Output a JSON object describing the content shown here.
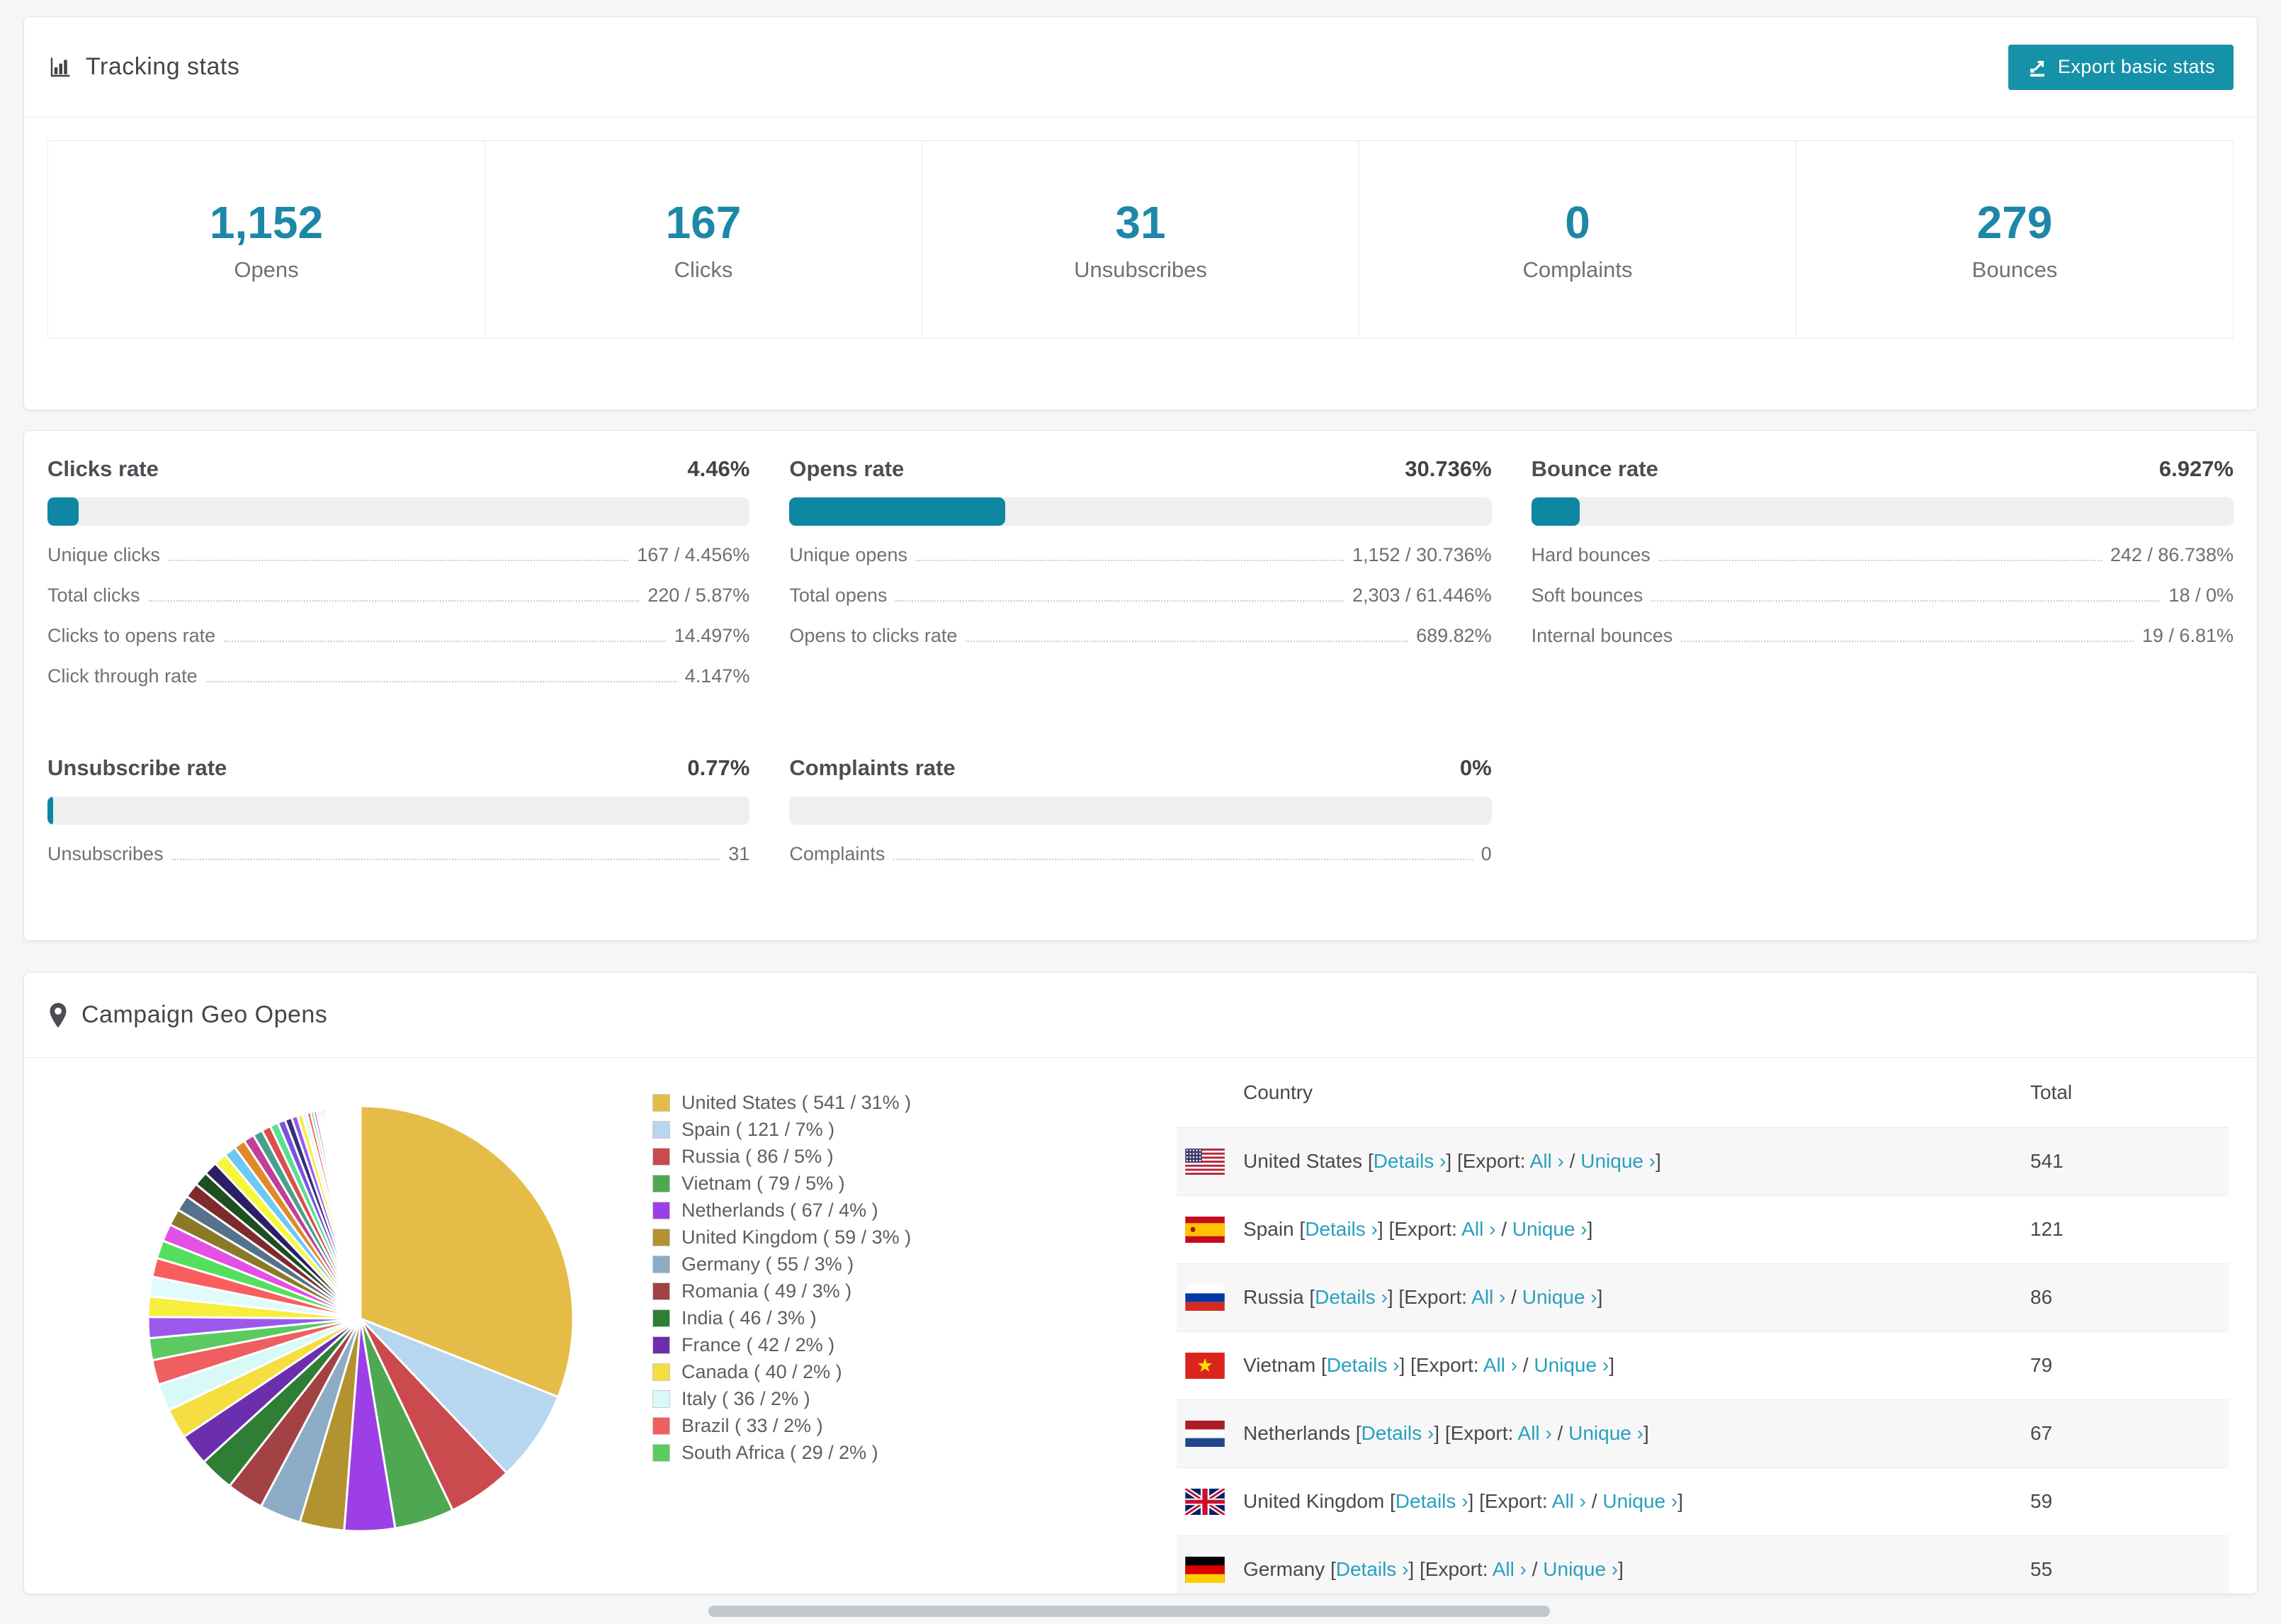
{
  "tracking_stats": {
    "title": "Tracking stats",
    "export_button": "Export basic stats",
    "stats": [
      {
        "value": "1,152",
        "label": "Opens"
      },
      {
        "value": "167",
        "label": "Clicks"
      },
      {
        "value": "31",
        "label": "Unsubscribes"
      },
      {
        "value": "0",
        "label": "Complaints"
      },
      {
        "value": "279",
        "label": "Bounces"
      }
    ]
  },
  "rates": {
    "sections": [
      {
        "title": "Clicks rate",
        "value": "4.46%",
        "percent": 4.46,
        "rows": [
          {
            "label": "Unique clicks",
            "value": "167 / 4.456%"
          },
          {
            "label": "Total clicks",
            "value": "220 / 5.87%"
          },
          {
            "label": "Clicks to opens rate",
            "value": "14.497%"
          },
          {
            "label": "Click through rate",
            "value": "4.147%"
          }
        ]
      },
      {
        "title": "Opens rate",
        "value": "30.736%",
        "percent": 30.736,
        "rows": [
          {
            "label": "Unique opens",
            "value": "1,152 / 30.736%"
          },
          {
            "label": "Total opens",
            "value": "2,303 / 61.446%"
          },
          {
            "label": "Opens to clicks rate",
            "value": "689.82%"
          }
        ]
      },
      {
        "title": "Bounce rate",
        "value": "6.927%",
        "percent": 6.927,
        "rows": [
          {
            "label": "Hard bounces",
            "value": "242 / 86.738%"
          },
          {
            "label": "Soft bounces",
            "value": "18 / 0%"
          },
          {
            "label": "Internal bounces",
            "value": "19 / 6.81%"
          }
        ]
      },
      {
        "title": "Unsubscribe rate",
        "value": "0.77%",
        "percent": 0.77,
        "rows": [
          {
            "label": "Unsubscribes",
            "value": "31"
          }
        ]
      },
      {
        "title": "Complaints rate",
        "value": "0%",
        "percent": 0,
        "rows": [
          {
            "label": "Complaints",
            "value": "0"
          }
        ]
      }
    ]
  },
  "geo": {
    "title": "Campaign Geo Opens",
    "table": {
      "col_country": "Country",
      "col_total": "Total",
      "details_label": "Details ›",
      "export_prefix": "[Export:",
      "all_label": "All ›",
      "unique_label": "Unique ›",
      "bracket_open": "[",
      "bracket_close": "]",
      "separator": "/",
      "rows": [
        {
          "country": "United States",
          "flag": "us",
          "total": "541"
        },
        {
          "country": "Spain",
          "flag": "es",
          "total": "121"
        },
        {
          "country": "Russia",
          "flag": "ru",
          "total": "86"
        },
        {
          "country": "Vietnam",
          "flag": "vn",
          "total": "79"
        },
        {
          "country": "Netherlands",
          "flag": "nl",
          "total": "67"
        },
        {
          "country": "United Kingdom",
          "flag": "gb",
          "total": "59"
        },
        {
          "country": "Germany",
          "flag": "de",
          "total": "55"
        }
      ]
    }
  },
  "chart_data": {
    "type": "pie",
    "title": "Campaign Geo Opens",
    "legend_position": "right",
    "start_angle_deg": -90,
    "direction": "clockwise",
    "slices": [
      {
        "label": "United States",
        "value": 541,
        "percent": 31,
        "color": "#e4bc47"
      },
      {
        "label": "Spain",
        "value": 121,
        "percent": 7,
        "color": "#b7d7f1"
      },
      {
        "label": "Russia",
        "value": 86,
        "percent": 5,
        "color": "#cb4a4d"
      },
      {
        "label": "Vietnam",
        "value": 79,
        "percent": 5,
        "color": "#4ea852"
      },
      {
        "label": "Netherlands",
        "value": 67,
        "percent": 4,
        "color": "#9d3fe6"
      },
      {
        "label": "United Kingdom",
        "value": 59,
        "percent": 3,
        "color": "#b2932f"
      },
      {
        "label": "Germany",
        "value": 55,
        "percent": 3,
        "color": "#8cacc6"
      },
      {
        "label": "Romania",
        "value": 49,
        "percent": 3,
        "color": "#a34245"
      },
      {
        "label": "India",
        "value": 46,
        "percent": 3,
        "color": "#307d35"
      },
      {
        "label": "France",
        "value": 42,
        "percent": 2,
        "color": "#6b2fad"
      },
      {
        "label": "Canada",
        "value": 40,
        "percent": 2,
        "color": "#f4de40"
      },
      {
        "label": "Italy",
        "value": 36,
        "percent": 2,
        "color": "#d9f8f8"
      },
      {
        "label": "Brazil",
        "value": 33,
        "percent": 2,
        "color": "#ef5e61"
      },
      {
        "label": "South Africa",
        "value": 29,
        "percent": 2,
        "color": "#5bcb61"
      }
    ],
    "other_slices": {
      "note": "unlabeled minor countries rendered as thin slivers",
      "values": [
        28,
        27,
        26,
        25,
        24,
        23,
        22,
        21,
        20,
        19,
        18,
        17,
        16,
        15,
        14,
        13,
        12,
        11,
        10,
        9,
        8,
        7,
        6,
        5,
        4,
        4,
        3,
        3,
        3,
        3,
        2,
        2,
        2,
        2,
        2,
        2,
        2,
        2,
        2,
        2,
        1,
        1,
        1,
        1,
        1,
        1,
        1,
        1,
        1,
        1,
        1,
        1,
        1,
        1,
        1,
        1,
        1,
        1,
        1,
        1,
        1,
        1,
        1,
        1,
        1,
        1
      ],
      "palette": [
        "#9b59ec",
        "#f7ee3d",
        "#e0fbfb",
        "#fa5d5d",
        "#54e05e",
        "#e44fe4",
        "#8a7a28",
        "#55728c",
        "#7e2a2e",
        "#1d4f22",
        "#2c1f63",
        "#f7f73a",
        "#6cc9f2",
        "#e0892a",
        "#c03f98",
        "#49a08f",
        "#d94f4f",
        "#57e08f",
        "#7a52e0",
        "#32327a"
      ]
    }
  }
}
